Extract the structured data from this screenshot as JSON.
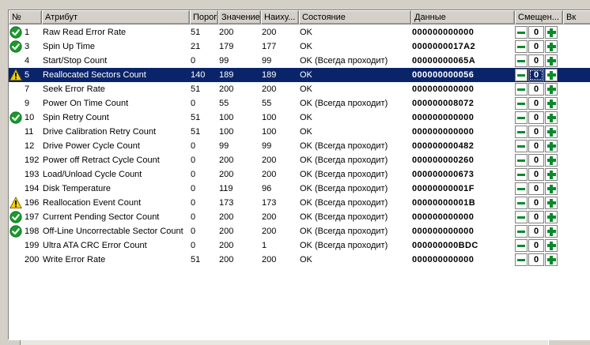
{
  "columns": {
    "num": "№",
    "attribute": "Атрибут",
    "threshold": "Порог",
    "value": "Значение",
    "worst": "Наиху...",
    "state": "Состояние",
    "data": "Данные",
    "offset": "Смещен...",
    "extra": "Вк"
  },
  "colors": {
    "selected_bg": "#0a246a",
    "ok_icon": "#1b9a2e",
    "warn_icon": "#f2d200",
    "stepper_green": "#0a8a2e"
  },
  "rows": [
    {
      "icon": "ok-icon",
      "num": "1",
      "attribute": "Raw Read Error Rate",
      "threshold": "51",
      "value": "200",
      "worst": "200",
      "state": "OK",
      "data": "000000000000",
      "offset": "0"
    },
    {
      "icon": "ok-icon",
      "num": "3",
      "attribute": "Spin Up Time",
      "threshold": "21",
      "value": "179",
      "worst": "177",
      "state": "OK",
      "data": "0000000017A2",
      "offset": "0"
    },
    {
      "icon": "",
      "num": "4",
      "attribute": "Start/Stop Count",
      "threshold": "0",
      "value": "99",
      "worst": "99",
      "state": "OK (Всегда проходит)",
      "data": "00000000065A",
      "offset": "0"
    },
    {
      "icon": "warning-icon",
      "num": "5",
      "attribute": "Reallocated Sectors Count",
      "threshold": "140",
      "value": "189",
      "worst": "189",
      "state": "OK",
      "data": "000000000056",
      "offset": "0",
      "selected": true
    },
    {
      "icon": "",
      "num": "7",
      "attribute": "Seek Error Rate",
      "threshold": "51",
      "value": "200",
      "worst": "200",
      "state": "OK",
      "data": "000000000000",
      "offset": "0"
    },
    {
      "icon": "",
      "num": "9",
      "attribute": "Power On Time Count",
      "threshold": "0",
      "value": "55",
      "worst": "55",
      "state": "OK (Всегда проходит)",
      "data": "000000008072",
      "offset": "0"
    },
    {
      "icon": "ok-icon",
      "num": "10",
      "attribute": "Spin Retry Count",
      "threshold": "51",
      "value": "100",
      "worst": "100",
      "state": "OK",
      "data": "000000000000",
      "offset": "0"
    },
    {
      "icon": "",
      "num": "11",
      "attribute": "Drive Calibration Retry Count",
      "threshold": "51",
      "value": "100",
      "worst": "100",
      "state": "OK",
      "data": "000000000000",
      "offset": "0"
    },
    {
      "icon": "",
      "num": "12",
      "attribute": "Drive Power Cycle Count",
      "threshold": "0",
      "value": "99",
      "worst": "99",
      "state": "OK (Всегда проходит)",
      "data": "000000000482",
      "offset": "0"
    },
    {
      "icon": "",
      "num": "192",
      "attribute": "Power off Retract Cycle Count",
      "threshold": "0",
      "value": "200",
      "worst": "200",
      "state": "OK (Всегда проходит)",
      "data": "000000000260",
      "offset": "0"
    },
    {
      "icon": "",
      "num": "193",
      "attribute": "Load/Unload Cycle Count",
      "threshold": "0",
      "value": "200",
      "worst": "200",
      "state": "OK (Всегда проходит)",
      "data": "000000000673",
      "offset": "0"
    },
    {
      "icon": "",
      "num": "194",
      "attribute": "Disk Temperature",
      "threshold": "0",
      "value": "119",
      "worst": "96",
      "state": "OK (Всегда проходит)",
      "data": "00000000001F",
      "offset": "0"
    },
    {
      "icon": "warning-icon",
      "num": "196",
      "attribute": "Reallocation Event Count",
      "threshold": "0",
      "value": "173",
      "worst": "173",
      "state": "OK (Всегда проходит)",
      "data": "00000000001B",
      "offset": "0"
    },
    {
      "icon": "ok-icon",
      "num": "197",
      "attribute": "Current Pending Sector Count",
      "threshold": "0",
      "value": "200",
      "worst": "200",
      "state": "OK (Всегда проходит)",
      "data": "000000000000",
      "offset": "0"
    },
    {
      "icon": "ok-icon",
      "num": "198",
      "attribute": "Off-Line Uncorrectable Sector Count",
      "threshold": "0",
      "value": "200",
      "worst": "200",
      "state": "OK (Всегда проходит)",
      "data": "000000000000",
      "offset": "0"
    },
    {
      "icon": "",
      "num": "199",
      "attribute": "Ultra ATA CRC Error Count",
      "threshold": "0",
      "value": "200",
      "worst": "1",
      "state": "OK (Всегда проходит)",
      "data": "000000000BDC",
      "offset": "0"
    },
    {
      "icon": "",
      "num": "200",
      "attribute": "Write Error Rate",
      "threshold": "51",
      "value": "200",
      "worst": "200",
      "state": "OK",
      "data": "000000000000",
      "offset": "0"
    }
  ]
}
